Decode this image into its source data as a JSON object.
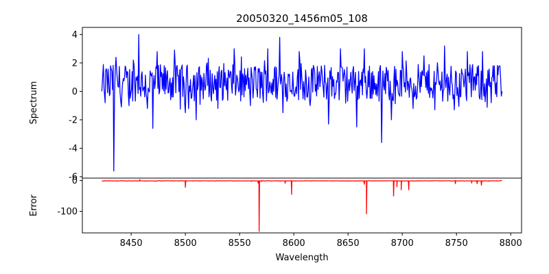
{
  "chart_data": [
    {
      "type": "line",
      "title": "20050320_1456m05_108",
      "xlabel": "",
      "ylabel": "Spectrum",
      "xlim": [
        8405,
        8810
      ],
      "ylim": [
        -6.1,
        4.5
      ],
      "x_ticks": [
        8450,
        8500,
        8550,
        8600,
        8650,
        8700,
        8750,
        8800
      ],
      "y_ticks": [
        -6,
        -4,
        -2,
        0,
        2,
        4
      ],
      "grid": false,
      "series": [
        {
          "name": "",
          "color": "#0000ff",
          "x_start": 8423,
          "x_end": 8792,
          "keypoints": [
            {
              "x": 8423,
              "y": 0.0
            },
            {
              "x": 8425,
              "y": 0.2
            },
            {
              "x": 8426,
              "y": -0.8
            },
            {
              "x": 8427,
              "y": 1.6
            },
            {
              "x": 8430,
              "y": -0.3
            },
            {
              "x": 8431,
              "y": 1.8
            },
            {
              "x": 8434,
              "y": -5.6
            },
            {
              "x": 8436,
              "y": 2.4
            },
            {
              "x": 8441,
              "y": -1.1
            },
            {
              "x": 8448,
              "y": -1.0
            },
            {
              "x": 8452,
              "y": 2.2
            },
            {
              "x": 8457,
              "y": 4.0
            },
            {
              "x": 8465,
              "y": -1.2
            },
            {
              "x": 8470,
              "y": -2.6
            },
            {
              "x": 8474,
              "y": 2.8
            },
            {
              "x": 8490,
              "y": 2.9
            },
            {
              "x": 8500,
              "y": -1.5
            },
            {
              "x": 8510,
              "y": -2.0
            },
            {
              "x": 8520,
              "y": 2.0
            },
            {
              "x": 8530,
              "y": -1.2
            },
            {
              "x": 8545,
              "y": 3.0
            },
            {
              "x": 8560,
              "y": -1.0
            },
            {
              "x": 8576,
              "y": 3.0
            },
            {
              "x": 8587,
              "y": 3.8
            },
            {
              "x": 8590,
              "y": -1.5
            },
            {
              "x": 8605,
              "y": 2.8
            },
            {
              "x": 8615,
              "y": -1.0
            },
            {
              "x": 8632,
              "y": -2.3
            },
            {
              "x": 8643,
              "y": 3.0
            },
            {
              "x": 8658,
              "y": -2.5
            },
            {
              "x": 8665,
              "y": 3.0
            },
            {
              "x": 8681,
              "y": -3.6
            },
            {
              "x": 8690,
              "y": -2.0
            },
            {
              "x": 8700,
              "y": 2.8
            },
            {
              "x": 8710,
              "y": -1.2
            },
            {
              "x": 8720,
              "y": 2.5
            },
            {
              "x": 8730,
              "y": -1.3
            },
            {
              "x": 8739,
              "y": 3.2
            },
            {
              "x": 8748,
              "y": -1.3
            },
            {
              "x": 8760,
              "y": 2.8
            },
            {
              "x": 8774,
              "y": 2.8
            },
            {
              "x": 8782,
              "y": -0.8
            },
            {
              "x": 8786,
              "y": -0.2
            },
            {
              "x": 8790,
              "y": 1.8
            },
            {
              "x": 8792,
              "y": 0.0
            }
          ]
        }
      ]
    },
    {
      "type": "line",
      "title": "",
      "xlabel": "Wavelength",
      "ylabel": "Error",
      "xlim": [
        8405,
        8810
      ],
      "ylim": [
        -170,
        8
      ],
      "x_ticks": [
        8450,
        8500,
        8550,
        8600,
        8650,
        8700,
        8750,
        8800
      ],
      "y_ticks": [
        -100,
        0
      ],
      "grid": false,
      "series": [
        {
          "name": "",
          "color": "#ff0000",
          "x_start": 8423,
          "x_end": 8792,
          "baseline": -1,
          "spikes": [
            {
              "x": 8458,
              "y": 3
            },
            {
              "x": 8500,
              "y": -22
            },
            {
              "x": 8561,
              "y": -3
            },
            {
              "x": 8567,
              "y": -8
            },
            {
              "x": 8568,
              "y": -165
            },
            {
              "x": 8570,
              "y": -3
            },
            {
              "x": 8592,
              "y": -9
            },
            {
              "x": 8598,
              "y": -45
            },
            {
              "x": 8665,
              "y": -12
            },
            {
              "x": 8667,
              "y": -108
            },
            {
              "x": 8692,
              "y": -50
            },
            {
              "x": 8695,
              "y": -20
            },
            {
              "x": 8699,
              "y": -30
            },
            {
              "x": 8706,
              "y": -30
            },
            {
              "x": 8749,
              "y": -10
            },
            {
              "x": 8764,
              "y": -8
            },
            {
              "x": 8769,
              "y": -10
            },
            {
              "x": 8773,
              "y": -15
            }
          ]
        }
      ]
    }
  ]
}
